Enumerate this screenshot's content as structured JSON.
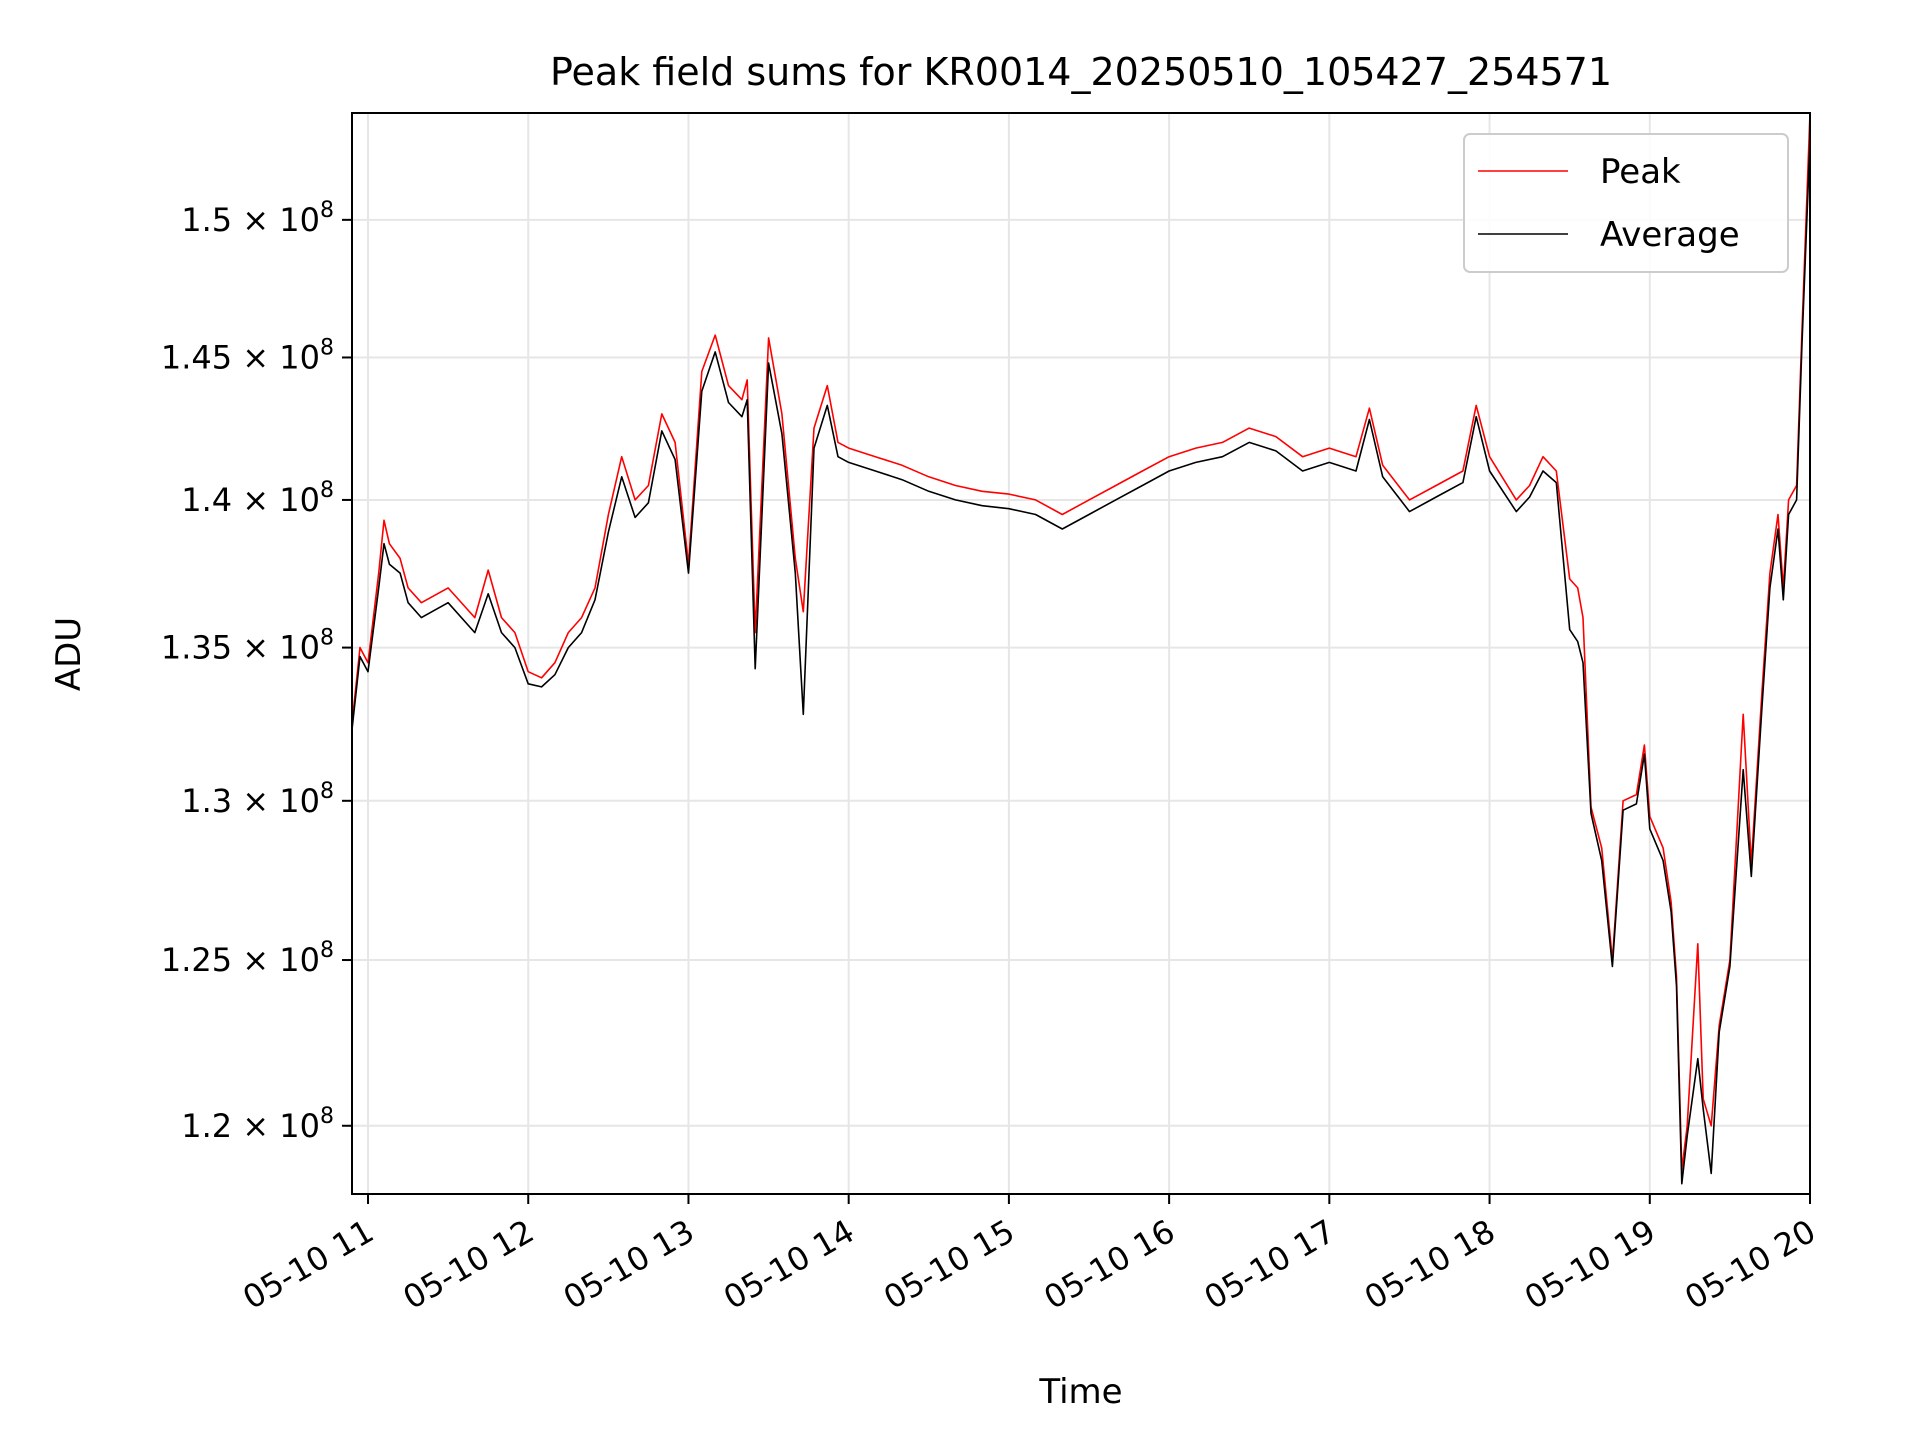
{
  "chart_data": {
    "type": "line",
    "title": "Peak field sums for KR0014_20250510_105427_254571",
    "xlabel": "Time",
    "ylabel": "ADU",
    "y_scale": "log",
    "xlim": [
      "2025-05-10T10:54",
      "2025-05-10T20:00"
    ],
    "ylim": [
      118000000,
      154000000
    ],
    "grid": true,
    "legend": {
      "position": "top-right",
      "entries": [
        "Peak",
        "Average"
      ]
    },
    "x_ticks": [
      {
        "t": "2025-05-10T11:00",
        "label": "05-10 11"
      },
      {
        "t": "2025-05-10T12:00",
        "label": "05-10 12"
      },
      {
        "t": "2025-05-10T13:00",
        "label": "05-10 13"
      },
      {
        "t": "2025-05-10T14:00",
        "label": "05-10 14"
      },
      {
        "t": "2025-05-10T15:00",
        "label": "05-10 15"
      },
      {
        "t": "2025-05-10T16:00",
        "label": "05-10 16"
      },
      {
        "t": "2025-05-10T17:00",
        "label": "05-10 17"
      },
      {
        "t": "2025-05-10T18:00",
        "label": "05-10 18"
      },
      {
        "t": "2025-05-10T19:00",
        "label": "05-10 19"
      },
      {
        "t": "2025-05-10T20:00",
        "label": "05-10 20"
      }
    ],
    "y_ticks": [
      {
        "value": 120000000,
        "mantissa": "1.2"
      },
      {
        "value": 125000000,
        "mantissa": "1.25"
      },
      {
        "value": 130000000,
        "mantissa": "1.3"
      },
      {
        "value": 135000000,
        "mantissa": "1.35"
      },
      {
        "value": 140000000,
        "mantissa": "1.4"
      },
      {
        "value": 145000000,
        "mantissa": "1.45"
      },
      {
        "value": 150000000,
        "mantissa": "1.5"
      }
    ],
    "y_tick_base": "10",
    "y_tick_exponent": "8",
    "y_tick_times": "×",
    "series": [
      {
        "name": "Peak",
        "color": "#ff0000",
        "x": [
          "2025-05-10T10:54",
          "2025-05-10T10:57",
          "2025-05-10T11:00",
          "2025-05-10T11:04",
          "2025-05-10T11:06",
          "2025-05-10T11:08",
          "2025-05-10T11:12",
          "2025-05-10T11:15",
          "2025-05-10T11:20",
          "2025-05-10T11:30",
          "2025-05-10T11:40",
          "2025-05-10T11:45",
          "2025-05-10T11:50",
          "2025-05-10T11:55",
          "2025-05-10T12:00",
          "2025-05-10T12:05",
          "2025-05-10T12:10",
          "2025-05-10T12:15",
          "2025-05-10T12:20",
          "2025-05-10T12:25",
          "2025-05-10T12:30",
          "2025-05-10T12:35",
          "2025-05-10T12:40",
          "2025-05-10T12:45",
          "2025-05-10T12:50",
          "2025-05-10T12:55",
          "2025-05-10T13:00",
          "2025-05-10T13:05",
          "2025-05-10T13:10",
          "2025-05-10T13:15",
          "2025-05-10T13:20",
          "2025-05-10T13:22",
          "2025-05-10T13:25",
          "2025-05-10T13:30",
          "2025-05-10T13:35",
          "2025-05-10T13:40",
          "2025-05-10T13:43",
          "2025-05-10T13:47",
          "2025-05-10T13:52",
          "2025-05-10T13:56",
          "2025-05-10T14:00",
          "2025-05-10T14:10",
          "2025-05-10T14:20",
          "2025-05-10T14:30",
          "2025-05-10T14:40",
          "2025-05-10T14:50",
          "2025-05-10T15:00",
          "2025-05-10T15:10",
          "2025-05-10T15:20",
          "2025-05-10T15:30",
          "2025-05-10T15:40",
          "2025-05-10T15:50",
          "2025-05-10T16:00",
          "2025-05-10T16:10",
          "2025-05-10T16:20",
          "2025-05-10T16:30",
          "2025-05-10T16:40",
          "2025-05-10T16:50",
          "2025-05-10T17:00",
          "2025-05-10T17:10",
          "2025-05-10T17:15",
          "2025-05-10T17:20",
          "2025-05-10T17:30",
          "2025-05-10T17:40",
          "2025-05-10T17:50",
          "2025-05-10T17:55",
          "2025-05-10T18:00",
          "2025-05-10T18:10",
          "2025-05-10T18:15",
          "2025-05-10T18:20",
          "2025-05-10T18:25",
          "2025-05-10T18:30",
          "2025-05-10T18:33",
          "2025-05-10T18:35",
          "2025-05-10T18:38",
          "2025-05-10T18:42",
          "2025-05-10T18:46",
          "2025-05-10T18:50",
          "2025-05-10T18:55",
          "2025-05-10T18:58",
          "2025-05-10T19:00",
          "2025-05-10T19:05",
          "2025-05-10T19:08",
          "2025-05-10T19:10",
          "2025-05-10T19:12",
          "2025-05-10T19:14",
          "2025-05-10T19:18",
          "2025-05-10T19:20",
          "2025-05-10T19:23",
          "2025-05-10T19:26",
          "2025-05-10T19:30",
          "2025-05-10T19:35",
          "2025-05-10T19:38",
          "2025-05-10T19:42",
          "2025-05-10T19:45",
          "2025-05-10T19:48",
          "2025-05-10T19:50",
          "2025-05-10T19:52",
          "2025-05-10T19:55",
          "2025-05-10T19:57",
          "2025-05-10T20:00"
        ],
        "values": [
          132500000,
          135000000,
          134500000,
          137500000,
          139300000,
          138500000,
          138000000,
          137000000,
          136500000,
          137000000,
          136000000,
          137600000,
          136000000,
          135500000,
          134200000,
          134000000,
          134500000,
          135500000,
          136000000,
          137000000,
          139500000,
          141500000,
          140000000,
          140500000,
          143000000,
          142000000,
          137800000,
          144500000,
          145800000,
          144000000,
          143500000,
          144200000,
          135500000,
          145700000,
          143000000,
          138000000,
          136200000,
          142500000,
          144000000,
          142000000,
          141800000,
          141500000,
          141200000,
          140800000,
          140500000,
          140300000,
          140200000,
          140000000,
          139500000,
          140000000,
          140500000,
          141000000,
          141500000,
          141800000,
          142000000,
          142500000,
          142200000,
          141500000,
          141800000,
          141500000,
          143200000,
          141200000,
          140000000,
          140500000,
          141000000,
          143300000,
          141500000,
          140000000,
          140500000,
          141500000,
          141000000,
          137300000,
          137000000,
          136000000,
          129800000,
          128500000,
          125000000,
          130000000,
          130200000,
          131800000,
          129500000,
          128500000,
          126800000,
          124500000,
          118700000,
          120000000,
          125500000,
          120800000,
          120000000,
          123000000,
          125000000,
          132800000,
          128000000,
          133500000,
          137500000,
          139500000,
          137000000,
          140000000,
          140500000,
          146000000,
          154000000
        ]
      },
      {
        "name": "Average",
        "color": "#000000",
        "x": [
          "2025-05-10T10:54",
          "2025-05-10T10:57",
          "2025-05-10T11:00",
          "2025-05-10T11:04",
          "2025-05-10T11:06",
          "2025-05-10T11:08",
          "2025-05-10T11:12",
          "2025-05-10T11:15",
          "2025-05-10T11:20",
          "2025-05-10T11:30",
          "2025-05-10T11:40",
          "2025-05-10T11:45",
          "2025-05-10T11:50",
          "2025-05-10T11:55",
          "2025-05-10T12:00",
          "2025-05-10T12:05",
          "2025-05-10T12:10",
          "2025-05-10T12:15",
          "2025-05-10T12:20",
          "2025-05-10T12:25",
          "2025-05-10T12:30",
          "2025-05-10T12:35",
          "2025-05-10T12:40",
          "2025-05-10T12:45",
          "2025-05-10T12:50",
          "2025-05-10T12:55",
          "2025-05-10T13:00",
          "2025-05-10T13:05",
          "2025-05-10T13:10",
          "2025-05-10T13:15",
          "2025-05-10T13:20",
          "2025-05-10T13:22",
          "2025-05-10T13:25",
          "2025-05-10T13:30",
          "2025-05-10T13:35",
          "2025-05-10T13:40",
          "2025-05-10T13:43",
          "2025-05-10T13:47",
          "2025-05-10T13:52",
          "2025-05-10T13:56",
          "2025-05-10T14:00",
          "2025-05-10T14:10",
          "2025-05-10T14:20",
          "2025-05-10T14:30",
          "2025-05-10T14:40",
          "2025-05-10T14:50",
          "2025-05-10T15:00",
          "2025-05-10T15:10",
          "2025-05-10T15:20",
          "2025-05-10T15:30",
          "2025-05-10T15:40",
          "2025-05-10T15:50",
          "2025-05-10T16:00",
          "2025-05-10T16:10",
          "2025-05-10T16:20",
          "2025-05-10T16:30",
          "2025-05-10T16:40",
          "2025-05-10T16:50",
          "2025-05-10T17:00",
          "2025-05-10T17:10",
          "2025-05-10T17:15",
          "2025-05-10T17:20",
          "2025-05-10T17:30",
          "2025-05-10T17:40",
          "2025-05-10T17:50",
          "2025-05-10T17:55",
          "2025-05-10T18:00",
          "2025-05-10T18:10",
          "2025-05-10T18:15",
          "2025-05-10T18:20",
          "2025-05-10T18:25",
          "2025-05-10T18:30",
          "2025-05-10T18:33",
          "2025-05-10T18:35",
          "2025-05-10T18:38",
          "2025-05-10T18:42",
          "2025-05-10T18:46",
          "2025-05-10T18:50",
          "2025-05-10T18:55",
          "2025-05-10T18:58",
          "2025-05-10T19:00",
          "2025-05-10T19:05",
          "2025-05-10T19:08",
          "2025-05-10T19:10",
          "2025-05-10T19:12",
          "2025-05-10T19:14",
          "2025-05-10T19:18",
          "2025-05-10T19:20",
          "2025-05-10T19:23",
          "2025-05-10T19:26",
          "2025-05-10T19:30",
          "2025-05-10T19:35",
          "2025-05-10T19:38",
          "2025-05-10T19:42",
          "2025-05-10T19:45",
          "2025-05-10T19:48",
          "2025-05-10T19:50",
          "2025-05-10T19:52",
          "2025-05-10T19:55",
          "2025-05-10T19:57",
          "2025-05-10T20:00"
        ],
        "values": [
          132300000,
          134700000,
          134200000,
          137000000,
          138500000,
          137800000,
          137500000,
          136500000,
          136000000,
          136500000,
          135500000,
          136800000,
          135500000,
          135000000,
          133800000,
          133700000,
          134100000,
          135000000,
          135500000,
          136600000,
          138900000,
          140800000,
          139400000,
          139900000,
          142400000,
          141400000,
          137500000,
          143800000,
          145200000,
          143400000,
          142900000,
          143500000,
          134300000,
          144800000,
          142300000,
          137500000,
          132800000,
          141800000,
          143300000,
          141500000,
          141300000,
          141000000,
          140700000,
          140300000,
          140000000,
          139800000,
          139700000,
          139500000,
          139000000,
          139500000,
          140000000,
          140500000,
          141000000,
          141300000,
          141500000,
          142000000,
          141700000,
          141000000,
          141300000,
          141000000,
          142800000,
          140800000,
          139600000,
          140100000,
          140600000,
          142900000,
          141000000,
          139600000,
          140100000,
          141000000,
          140600000,
          135600000,
          135200000,
          134500000,
          129600000,
          128100000,
          124800000,
          129700000,
          129900000,
          131500000,
          129100000,
          128100000,
          126500000,
          124200000,
          118300000,
          119700000,
          122000000,
          120500000,
          118600000,
          122800000,
          124800000,
          131000000,
          127600000,
          133000000,
          137000000,
          139000000,
          136600000,
          139500000,
          140000000,
          145500000,
          153000000
        ]
      }
    ]
  }
}
